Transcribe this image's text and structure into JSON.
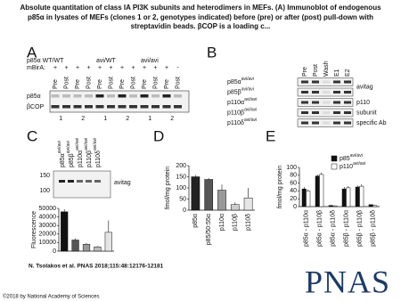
{
  "header": {
    "title": "Absolute quantitation of class IA PI3K subunits and heterodimers in MEFs. (A) Immunoblot of endogenous p85α in lysates of MEFs (clones 1 or 2, genotypes indicated) before (pre) or after (post) pull-down with streptavidin beads. βCOP is a loading c..."
  },
  "panel_a": {
    "letter": "A",
    "genotypes": [
      "p85α WT/WT",
      "avi/WT",
      "avi/avi"
    ],
    "mbira_label": "mBirA:",
    "mbira": [
      "+",
      "+",
      "+",
      "+",
      "+",
      "+",
      "+",
      "+",
      "+",
      "+",
      "+",
      "-"
    ],
    "lanes": [
      "Pre",
      "Post",
      "Pre",
      "Post",
      "Pre",
      "Post",
      "Pre",
      "Post",
      "Pre",
      "Post",
      "Pre",
      "Post"
    ],
    "rows": [
      "p85α",
      "βCOP"
    ],
    "clones": [
      "1",
      "2",
      "1",
      "2",
      "1",
      "2"
    ]
  },
  "panel_b": {
    "letter": "B",
    "columns": [
      "Pre",
      "Post",
      "Wash",
      "E1",
      "E2"
    ],
    "rows": [
      {
        "name": "p85α",
        "sup": "avi/avi"
      },
      {
        "name": "p85β",
        "sup": "avi/avi"
      },
      {
        "name": "p110α",
        "sup": "avi/avi"
      },
      {
        "name": "p110β",
        "sup": "avi/avi"
      },
      {
        "name": "p110δ",
        "sup": "avi/avi"
      }
    ],
    "right_labels": [
      "avitag",
      "p110",
      "subunit",
      "specific Ab"
    ]
  },
  "panel_c": {
    "letter": "C",
    "lanes": [
      {
        "name": "p85α",
        "sup": "avi/avi"
      },
      {
        "name": "p85β",
        "sup": "avi/avi"
      },
      {
        "name": "p110α",
        "sup": "avi/avi"
      },
      {
        "name": "p110β",
        "sup": "avi/avi"
      },
      {
        "name": "p110δ",
        "sup": "avi/avi"
      }
    ],
    "markers": [
      "150",
      "100"
    ],
    "blot_label": "avitag",
    "chart_data": {
      "type": "bar",
      "ylabel": "Fluorescence",
      "values": [
        46000,
        13000,
        8000,
        5000,
        22000
      ],
      "errors": [
        3000,
        2000,
        1500,
        1000,
        14000
      ],
      "colors": [
        "#111111",
        "#555555",
        "#999999",
        "#bbbbbb",
        "#e4e4e4"
      ],
      "ylim": [
        0,
        50000
      ],
      "yticks": [
        0,
        10000,
        20000,
        30000,
        40000,
        50000
      ]
    }
  },
  "panel_d": {
    "letter": "D",
    "chart_data": {
      "type": "bar",
      "ylabel": "fmol/mg protein",
      "categories": [
        "p85α",
        "p85/50:55α",
        "p110α",
        "p110β",
        "p110δ"
      ],
      "values": [
        150,
        138,
        90,
        25,
        55
      ],
      "errors": [
        8,
        6,
        25,
        10,
        45
      ],
      "colors": [
        "#222222",
        "#555555",
        "#999999",
        "#cccccc",
        "#e6e6e6"
      ],
      "ylim": [
        0,
        200
      ],
      "yticks": [
        0,
        50,
        100,
        150,
        200
      ]
    }
  },
  "panel_e": {
    "letter": "E",
    "chart_data": {
      "type": "grouped_bar",
      "ylabel": "fmol/mg protein",
      "categories": [
        "p85α - p110α",
        "p85α - p110β",
        "p85α - p110δ",
        "p85β - p110α",
        "p85β - p110β",
        "p85β - p110δ"
      ],
      "series": [
        {
          "name": "p85",
          "name_sup": "avi/avi",
          "color": "#111111",
          "values": [
            45,
            78,
            3,
            45,
            50,
            5
          ],
          "errors": [
            5,
            4,
            1,
            5,
            4,
            1
          ]
        },
        {
          "name": "p110",
          "name_sup": "avi/avi",
          "color": "#ffffff",
          "values": [
            40,
            82,
            2,
            48,
            52,
            3
          ],
          "errors": [
            4,
            5,
            1,
            4,
            5,
            1
          ]
        }
      ],
      "ylim": [
        0,
        100
      ],
      "yticks": [
        0,
        20,
        40,
        60,
        80,
        100
      ]
    }
  },
  "footer": {
    "citation": "N. Tsolakos et al. PNAS 2018;115:48:12176-12181",
    "copyright": "©2018 by National Academy of Sciences",
    "logo": "PNAS"
  }
}
